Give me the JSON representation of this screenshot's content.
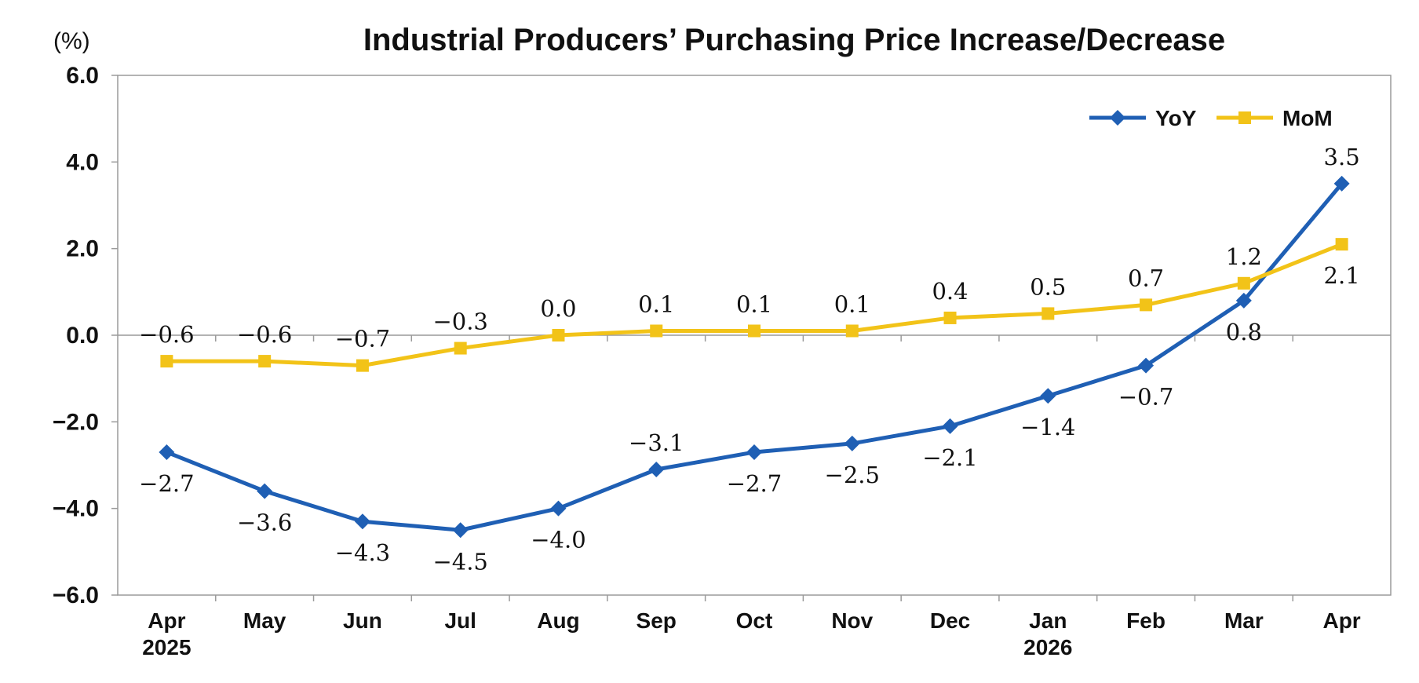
{
  "chart_data": {
    "type": "line",
    "title": "Industrial Producers’ Purchasing Price Increase/Decrease",
    "unit": "(%)",
    "categories": [
      [
        "Apr",
        "2025"
      ],
      [
        "May",
        ""
      ],
      [
        "Jun",
        ""
      ],
      [
        "Jul",
        ""
      ],
      [
        "Aug",
        ""
      ],
      [
        "Sep",
        ""
      ],
      [
        "Oct",
        ""
      ],
      [
        "Nov",
        ""
      ],
      [
        "Dec",
        ""
      ],
      [
        "Jan",
        "2026"
      ],
      [
        "Feb",
        ""
      ],
      [
        "Mar",
        ""
      ],
      [
        "Apr",
        ""
      ]
    ],
    "ylim": [
      -6.0,
      6.0
    ],
    "yticks": [
      6.0,
      4.0,
      2.0,
      0.0,
      -2.0,
      -4.0,
      -6.0
    ],
    "ytick_labels": [
      "6.0",
      "4.0",
      "2.0",
      "0.0",
      "-2.0",
      "-4.0",
      "-6.0"
    ],
    "grid": "vertical category separators",
    "legend_position": "top-right",
    "series": [
      {
        "name": "YoY",
        "color": "#1f5fb4",
        "marker": "diamond",
        "values": [
          -2.7,
          -3.6,
          -4.3,
          -4.5,
          -4.0,
          -3.1,
          -2.7,
          -2.5,
          -2.1,
          -1.4,
          -0.7,
          0.8,
          3.5
        ],
        "labels": [
          "-2.7",
          "-3.6",
          "-4.3",
          "-4.5",
          "-4.0",
          "-3.1",
          "-2.7",
          "-2.5",
          "-2.1",
          "-1.4",
          "-0.7",
          "0.8",
          "3.5"
        ],
        "label_placement": [
          "below",
          "below",
          "below",
          "below",
          "below",
          "above",
          "below",
          "below",
          "below",
          "below",
          "below",
          "below",
          "above"
        ]
      },
      {
        "name": "MoM",
        "color": "#f2c318",
        "marker": "square",
        "values": [
          -0.6,
          -0.6,
          -0.7,
          -0.3,
          0.0,
          0.1,
          0.1,
          0.1,
          0.4,
          0.5,
          0.7,
          1.2,
          2.1
        ],
        "labels": [
          "-0.6",
          "-0.6",
          "-0.7",
          "-0.3",
          "0.0",
          "0.1",
          "0.1",
          "0.1",
          "0.4",
          "0.5",
          "0.7",
          "1.2",
          "2.1"
        ],
        "label_placement": [
          "above",
          "above",
          "above",
          "above",
          "above",
          "above",
          "above",
          "above",
          "above",
          "above",
          "above",
          "above",
          "below"
        ]
      }
    ]
  }
}
